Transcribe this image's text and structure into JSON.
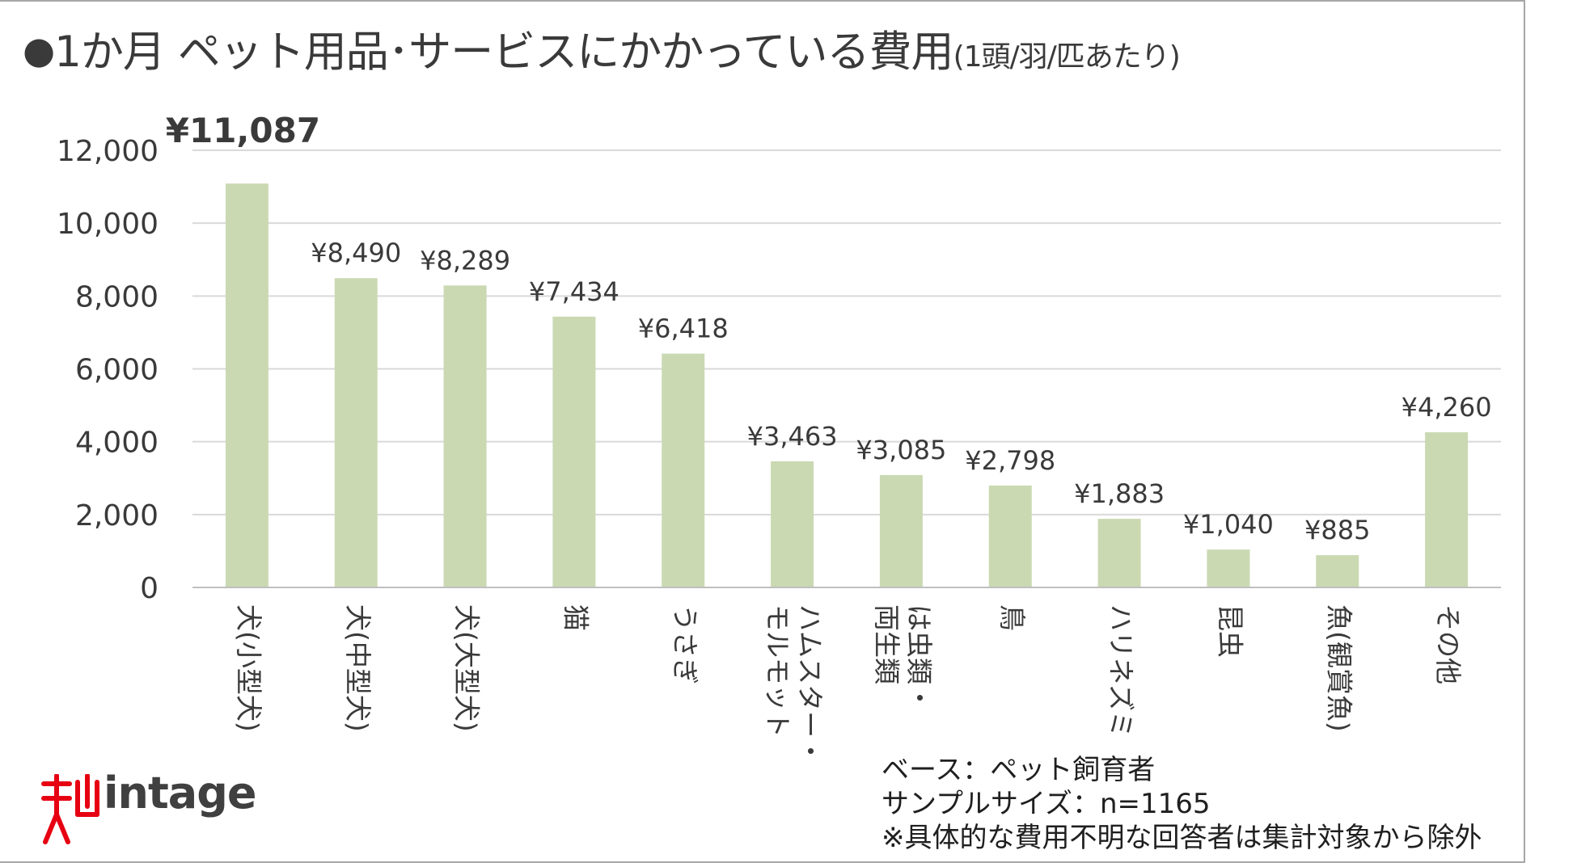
{
  "title": {
    "bullet": "●",
    "main": "1か月 ペット用品･サービスにかかっている費用",
    "sub": "(1頭/羽/匹あたり)"
  },
  "chart_data": {
    "type": "bar",
    "title": "1か月 ペット用品･サービスにかかっている費用(1頭/羽/匹あたり)",
    "categories": [
      "犬(小型犬)",
      "犬(中型犬)",
      "犬(大型犬)",
      "猫",
      "うさぎ",
      "ハムスター・モルモット",
      "は虫類・両生類",
      "鳥",
      "ハリネズミ",
      "昆虫",
      "魚(観賞魚)",
      "その他"
    ],
    "category_lines": [
      [
        "犬(小型犬)"
      ],
      [
        "犬(中型犬)"
      ],
      [
        "犬(大型犬)"
      ],
      [
        "猫"
      ],
      [
        "うさぎ"
      ],
      [
        "ハムスター・",
        "モルモット"
      ],
      [
        "は虫類・",
        "両生類"
      ],
      [
        "鳥"
      ],
      [
        "ハリネズミ"
      ],
      [
        "昆虫"
      ],
      [
        "魚(観賞魚)"
      ],
      [
        "その他"
      ]
    ],
    "values": [
      11087,
      8490,
      8289,
      7434,
      6418,
      3463,
      3085,
      2798,
      1883,
      1040,
      885,
      4260
    ],
    "value_labels": [
      "¥11,087",
      "¥8,490",
      "¥8,289",
      "¥7,434",
      "¥6,418",
      "¥3,463",
      "¥3,085",
      "¥2,798",
      "¥1,883",
      "¥1,040",
      "¥885",
      "¥4,260"
    ],
    "highlight_index": 0,
    "yticks": [
      0,
      2000,
      4000,
      6000,
      8000,
      10000,
      12000
    ],
    "ytick_labels": [
      "0",
      "2,000",
      "4,000",
      "6,000",
      "8,000",
      "10,000",
      "12,000"
    ],
    "ylim": [
      0,
      12000
    ],
    "grid": true,
    "bar_color": "#cad9b2",
    "grid_color": "#d9d9d9",
    "xlabel": "",
    "ylabel": ""
  },
  "notes": {
    "base": "ベース：ペット飼育者",
    "sample": "サンプルサイズ：n=1165",
    "exclusion": "※具体的な費用不明な回答者は集計対象から除外"
  },
  "logo": {
    "brand": "intage",
    "brand_color": "#e60012"
  }
}
